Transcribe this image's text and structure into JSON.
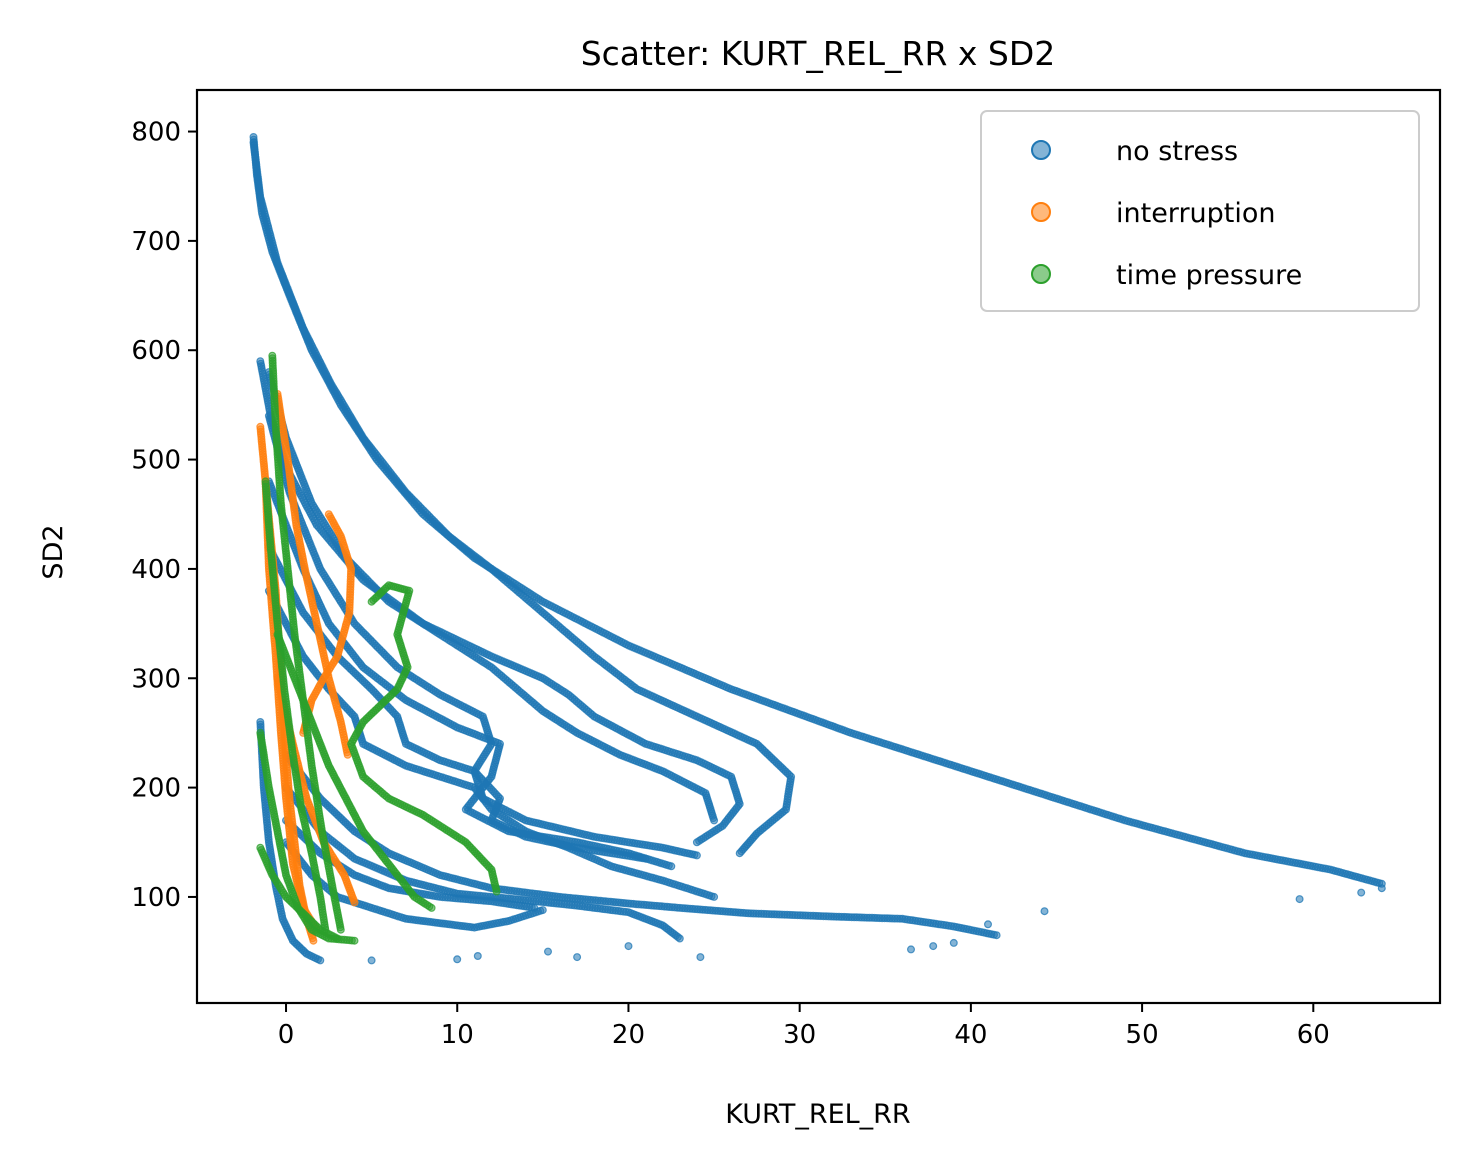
{
  "chart_data": {
    "type": "scatter",
    "title": "Scatter: KURT_REL_RR x SD2",
    "xlabel": "KURT_REL_RR",
    "ylabel": "SD2",
    "xlim": [
      -5.2,
      67.4
    ],
    "ylim": [
      3,
      838
    ],
    "xticks": [
      0,
      10,
      20,
      30,
      40,
      50,
      60
    ],
    "yticks": [
      100,
      200,
      300,
      400,
      500,
      600,
      700,
      800
    ],
    "grid": false,
    "legend_position": "top-right",
    "series": [
      {
        "name": "no stress",
        "color": "#1f77b4",
        "trajectories": [
          [
            [
              -1.9,
              795
            ],
            [
              -1.7,
              760
            ],
            [
              -1.4,
              725
            ],
            [
              -0.8,
              690
            ],
            [
              0.2,
              650
            ],
            [
              1.5,
              600
            ],
            [
              3.2,
              550
            ],
            [
              5.3,
              500
            ],
            [
              8,
              450
            ],
            [
              11,
              410
            ],
            [
              15,
              370
            ],
            [
              20,
              330
            ],
            [
              26,
              290
            ],
            [
              33,
              250
            ],
            [
              41,
              210
            ],
            [
              49,
              170
            ],
            [
              56,
              140
            ],
            [
              61,
              125
            ],
            [
              64,
              112
            ]
          ],
          [
            [
              -1.9,
              790
            ],
            [
              -1.5,
              740
            ],
            [
              -0.5,
              680
            ],
            [
              1,
              620
            ],
            [
              2.6,
              570
            ],
            [
              4.5,
              520
            ],
            [
              7,
              470
            ],
            [
              9.5,
              430
            ],
            [
              12,
              400
            ],
            [
              15,
              360
            ],
            [
              18,
              320
            ],
            [
              20.5,
              290
            ],
            [
              24,
              265
            ],
            [
              27.5,
              240
            ],
            [
              29.5,
              210
            ],
            [
              29.2,
              180
            ],
            [
              27.5,
              158
            ],
            [
              26.5,
              140
            ]
          ],
          [
            [
              -1.5,
              590
            ],
            [
              -0.9,
              540
            ],
            [
              0.1,
              490
            ],
            [
              1.8,
              440
            ],
            [
              4.5,
              390
            ],
            [
              8,
              350
            ],
            [
              12,
              320
            ],
            [
              15,
              300
            ],
            [
              16.5,
              285
            ],
            [
              18,
              265
            ],
            [
              21,
              240
            ],
            [
              24,
              225
            ],
            [
              26,
              210
            ],
            [
              26.5,
              185
            ],
            [
              25.5,
              165
            ],
            [
              24,
              150
            ]
          ],
          [
            [
              -1,
              580
            ],
            [
              0,
              520
            ],
            [
              1.5,
              460
            ],
            [
              3.5,
              410
            ],
            [
              6,
              370
            ],
            [
              9,
              340
            ],
            [
              12,
              310
            ],
            [
              13.5,
              290
            ],
            [
              15,
              270
            ],
            [
              17,
              250
            ],
            [
              19.5,
              230
            ],
            [
              22,
              215
            ],
            [
              24.5,
              195
            ],
            [
              25,
              170
            ]
          ],
          [
            [
              -1,
              540
            ],
            [
              0.2,
              470
            ],
            [
              2,
              400
            ],
            [
              4,
              350
            ],
            [
              6.5,
              310
            ],
            [
              9,
              285
            ],
            [
              11.5,
              265
            ],
            [
              12,
              240
            ],
            [
              11,
              215
            ],
            [
              11.5,
              190
            ],
            [
              14,
              170
            ],
            [
              18,
              155
            ],
            [
              22,
              145
            ],
            [
              24,
              138
            ]
          ],
          [
            [
              -1,
              480
            ],
            [
              1,
              400
            ],
            [
              2.5,
              350
            ],
            [
              4.5,
              310
            ],
            [
              7,
              280
            ],
            [
              10,
              255
            ],
            [
              12.5,
              240
            ],
            [
              12,
              210
            ],
            [
              10.5,
              180
            ],
            [
              13,
              160
            ],
            [
              17,
              150
            ],
            [
              20,
              140
            ],
            [
              22.5,
              128
            ]
          ],
          [
            [
              -1,
              420
            ],
            [
              1,
              360
            ],
            [
              3,
              320
            ],
            [
              5,
              290
            ],
            [
              6.5,
              265
            ],
            [
              7,
              240
            ],
            [
              9,
              225
            ],
            [
              11,
              215
            ],
            [
              12.5,
              190
            ],
            [
              12,
              170
            ],
            [
              14,
              155
            ],
            [
              17,
              145
            ],
            [
              21,
              135
            ]
          ],
          [
            [
              -1,
              380
            ],
            [
              1,
              320
            ],
            [
              2.5,
              290
            ],
            [
              4,
              265
            ],
            [
              4.5,
              240
            ],
            [
              7,
              220
            ],
            [
              9,
              210
            ],
            [
              11,
              200
            ],
            [
              12,
              180
            ],
            [
              14,
              160
            ],
            [
              16.5,
              145
            ],
            [
              19,
              128
            ],
            [
              22,
              115
            ],
            [
              25,
              100
            ]
          ],
          [
            [
              0,
              230
            ],
            [
              2,
              190
            ],
            [
              4,
              160
            ],
            [
              6,
              140
            ],
            [
              9,
              120
            ],
            [
              12,
              108
            ],
            [
              16,
              100
            ],
            [
              20,
              94
            ],
            [
              23,
              90
            ],
            [
              27,
              85
            ],
            [
              32,
              82
            ],
            [
              36,
              80
            ],
            [
              39,
              73
            ],
            [
              41.5,
              65
            ]
          ],
          [
            [
              0,
              200
            ],
            [
              2,
              160
            ],
            [
              4,
              135
            ],
            [
              7,
              115
            ],
            [
              10,
              103
            ],
            [
              14,
              97
            ],
            [
              17,
              92
            ],
            [
              20,
              86
            ],
            [
              22,
              74
            ],
            [
              23,
              62
            ]
          ],
          [
            [
              0,
              170
            ],
            [
              2,
              140
            ],
            [
              4,
              120
            ],
            [
              6,
              108
            ],
            [
              9,
              100
            ],
            [
              12,
              96
            ],
            [
              14.5,
              90
            ]
          ],
          [
            [
              0,
              150
            ],
            [
              1.5,
              120
            ],
            [
              3,
              100
            ],
            [
              5,
              90
            ],
            [
              7,
              80
            ],
            [
              9,
              76
            ],
            [
              11,
              72
            ],
            [
              13,
              78
            ],
            [
              15,
              88
            ]
          ],
          [
            [
              -1.5,
              260
            ],
            [
              -1.3,
              200
            ],
            [
              -1,
              150
            ],
            [
              -0.6,
              110
            ],
            [
              -0.2,
              80
            ],
            [
              0.4,
              60
            ],
            [
              1.2,
              48
            ],
            [
              2,
              42
            ]
          ]
        ],
        "outliers": [
          [
            64,
            108
          ],
          [
            62.8,
            104
          ],
          [
            59.2,
            98
          ],
          [
            44.3,
            87
          ],
          [
            41,
            75
          ],
          [
            39,
            58
          ],
          [
            36.5,
            52
          ],
          [
            37.8,
            55
          ],
          [
            24.2,
            45
          ],
          [
            20,
            55
          ],
          [
            17,
            45
          ],
          [
            15.3,
            50
          ],
          [
            10,
            43
          ],
          [
            11.2,
            46
          ],
          [
            5,
            42
          ]
        ]
      },
      {
        "name": "interruption",
        "color": "#ff7f0e",
        "trajectories": [
          [
            [
              -1.5,
              530
            ],
            [
              -1.2,
              480
            ],
            [
              -0.9,
              430
            ],
            [
              -0.6,
              380
            ],
            [
              -0.4,
              330
            ],
            [
              -0.2,
              280
            ],
            [
              0,
              230
            ],
            [
              0.2,
              190
            ],
            [
              0.5,
              150
            ],
            [
              0.8,
              110
            ],
            [
              1.2,
              80
            ],
            [
              1.6,
              60
            ]
          ],
          [
            [
              -0.5,
              560
            ],
            [
              0.1,
              500
            ],
            [
              0.6,
              440
            ],
            [
              1.1,
              400
            ],
            [
              1.8,
              350
            ],
            [
              2.5,
              300
            ],
            [
              3.2,
              260
            ],
            [
              3.6,
              230
            ]
          ],
          [
            [
              2.5,
              450
            ],
            [
              3.2,
              430
            ],
            [
              3.8,
              400
            ],
            [
              3.7,
              360
            ],
            [
              3,
              320
            ],
            [
              2.2,
              300
            ],
            [
              1.5,
              280
            ],
            [
              1,
              250
            ]
          ],
          [
            [
              -1.2,
              480
            ],
            [
              -1,
              400
            ],
            [
              -0.6,
              320
            ],
            [
              -0.3,
              250
            ],
            [
              0,
              190
            ],
            [
              0.4,
              130
            ],
            [
              1,
              90
            ],
            [
              1.8,
              70
            ]
          ],
          [
            [
              -0.5,
              300
            ],
            [
              0.4,
              240
            ],
            [
              1.2,
              190
            ],
            [
              2.2,
              150
            ],
            [
              3.4,
              120
            ],
            [
              4,
              95
            ]
          ]
        ],
        "outliers": []
      },
      {
        "name": "time pressure",
        "color": "#2ca02c",
        "trajectories": [
          [
            [
              -0.8,
              595
            ],
            [
              -0.6,
              530
            ],
            [
              -0.3,
              460
            ],
            [
              0.1,
              400
            ],
            [
              0.5,
              340
            ],
            [
              1,
              280
            ],
            [
              1.5,
              220
            ],
            [
              2.1,
              160
            ],
            [
              2.7,
              110
            ],
            [
              3.2,
              70
            ]
          ],
          [
            [
              -1.2,
              480
            ],
            [
              -0.9,
              420
            ],
            [
              -0.5,
              350
            ],
            [
              -0.1,
              290
            ],
            [
              0.4,
              230
            ],
            [
              0.9,
              180
            ],
            [
              1.5,
              140
            ],
            [
              2,
              100
            ],
            [
              2.3,
              70
            ]
          ],
          [
            [
              5,
              370
            ],
            [
              6,
              385
            ],
            [
              7.2,
              380
            ],
            [
              6.5,
              340
            ],
            [
              7.1,
              310
            ],
            [
              6.5,
              290
            ],
            [
              5.5,
              275
            ],
            [
              4.5,
              260
            ],
            [
              3.8,
              240
            ],
            [
              4.5,
              210
            ],
            [
              6,
              190
            ],
            [
              8,
              175
            ],
            [
              10.5,
              150
            ],
            [
              12,
              125
            ],
            [
              12.3,
              105
            ]
          ],
          [
            [
              -1.5,
              250
            ],
            [
              -1,
              200
            ],
            [
              -0.5,
              160
            ],
            [
              0,
              120
            ],
            [
              0.7,
              90
            ],
            [
              1.5,
              70
            ],
            [
              2.5,
              62
            ],
            [
              4,
              60
            ]
          ],
          [
            [
              -0.5,
              340
            ],
            [
              0.5,
              300
            ],
            [
              1.5,
              260
            ],
            [
              2.5,
              220
            ],
            [
              3.5,
              190
            ],
            [
              4.5,
              160
            ],
            [
              6,
              130
            ],
            [
              7.5,
              100
            ],
            [
              8.5,
              90
            ]
          ],
          [
            [
              -1.5,
              145
            ],
            [
              -0.8,
              120
            ],
            [
              0,
              100
            ],
            [
              1,
              85
            ],
            [
              2,
              70
            ],
            [
              3,
              62
            ]
          ]
        ],
        "outliers": []
      }
    ]
  }
}
